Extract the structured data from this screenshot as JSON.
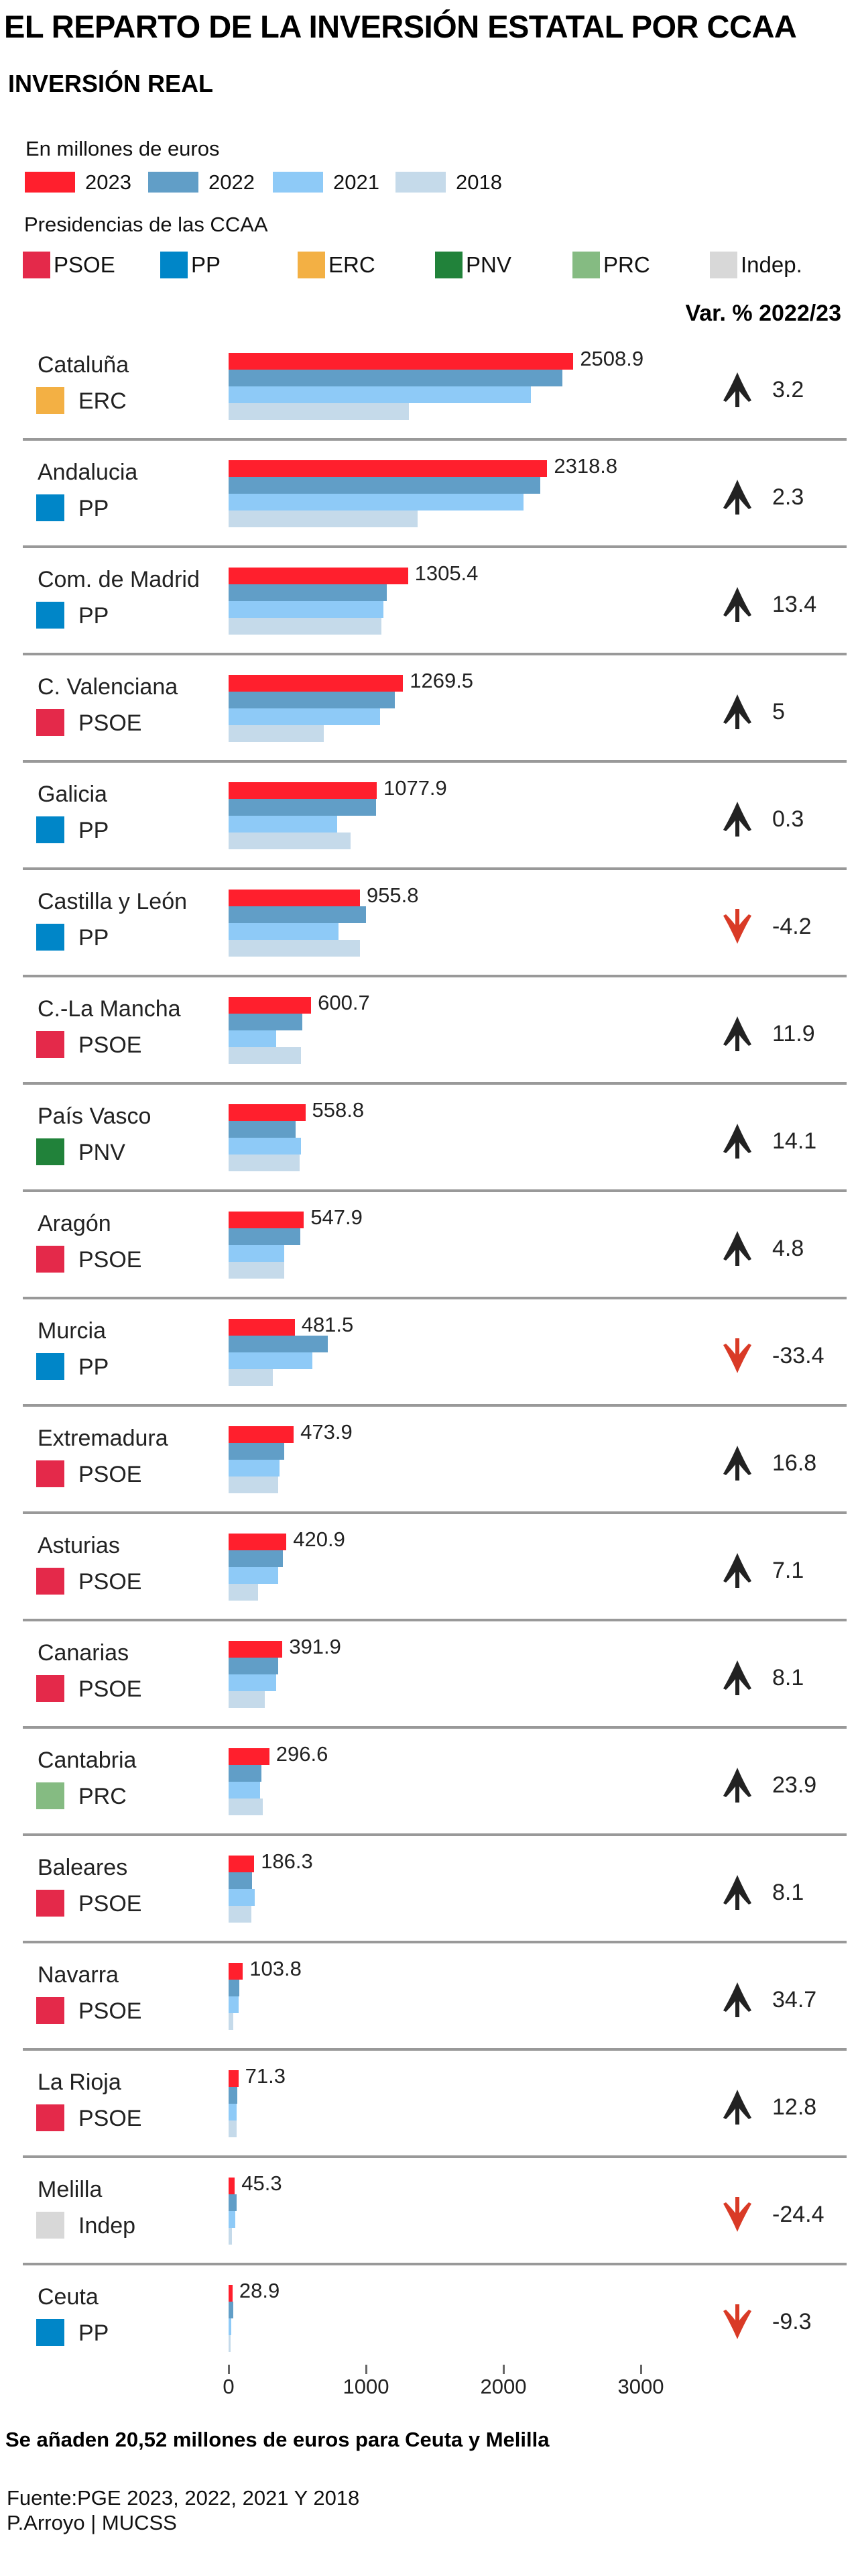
{
  "chart_data": {
    "type": "bar",
    "orientation": "horizontal",
    "title": "EL REPARTO DE LA INVERSIÓN ESTATAL POR CCAA",
    "subtitle": "INVERSIÓN REAL",
    "unit_label": "En millones de euros",
    "party_legend_title": "Presidencias de las CCAA",
    "var_header": "Var. % 2022/23",
    "xlim": [
      0,
      3000
    ],
    "xticks": [
      "0",
      "1000",
      "2000",
      "3000"
    ],
    "grid": false,
    "legend_placement": "top-left",
    "series": [
      {
        "name": "2023",
        "color": "#ff1f2d",
        "values": [
          2508.9,
          2318.8,
          1305.4,
          1269.5,
          1077.9,
          955.8,
          600.7,
          558.8,
          547.9,
          481.5,
          473.9,
          420.9,
          391.9,
          296.6,
          186.3,
          103.8,
          71.3,
          45.3,
          28.9
        ]
      },
      {
        "name": "2022",
        "color": "#619ec7",
        "values": [
          2431,
          2267,
          1151,
          1209,
          1075,
          998,
          537,
          490,
          523,
          723,
          406,
          393,
          363,
          239,
          172,
          77,
          63,
          60,
          32
        ]
      },
      {
        "name": "2021",
        "color": "#8ecaf7",
        "values": [
          2200,
          2144,
          1126,
          1102,
          790,
          802,
          347,
          527,
          407,
          611,
          371,
          359,
          347,
          228,
          192,
          72,
          60,
          50,
          20
        ]
      },
      {
        "name": "2018",
        "color": "#c5daea",
        "values": [
          1312,
          1377,
          1114,
          695,
          886,
          958,
          527,
          515,
          407,
          323,
          359,
          216,
          263,
          251,
          168,
          36,
          60,
          25,
          15
        ]
      }
    ],
    "categories": [
      "Cataluña",
      "Andalucia",
      "Com. de Madrid",
      "C. Valenciana",
      "Galicia",
      "Castilla y León",
      "C.-La Mancha",
      "País Vasco",
      "Aragón",
      "Murcia",
      "Extremadura",
      "Asturias",
      "Canarias",
      "Cantabria",
      "Baleares",
      "Navarra",
      "La Rioja",
      "Melilla",
      "Ceuta"
    ],
    "value_labels": [
      "2508.9",
      "2318.8",
      "1305.4",
      "1269.5",
      "1077.9",
      "955.8",
      "600.7",
      "558.8",
      "547.9",
      "481.5",
      "473.9",
      "420.9",
      "391.9",
      "296.6",
      "186.3",
      "103.8",
      "71.3",
      "45.3",
      "28.9"
    ],
    "parties": [
      "ERC",
      "PP",
      "PP",
      "PSOE",
      "PP",
      "PP",
      "PSOE",
      "PNV",
      "PSOE",
      "PP",
      "PSOE",
      "PSOE",
      "PSOE",
      "PRC",
      "PSOE",
      "PSOE",
      "PSOE",
      "Indep",
      "PP"
    ],
    "var_pct": [
      "3.2",
      "2.3",
      "13.4",
      "5",
      "0.3",
      "-4.2",
      "11.9",
      "14.1",
      "4.8",
      "-33.4",
      "16.8",
      "7.1",
      "8.1",
      "23.9",
      "8.1",
      "34.7",
      "12.8",
      "-24.4",
      "-9.3"
    ],
    "party_legend": [
      {
        "name": "PSOE",
        "color": "#e4294a"
      },
      {
        "name": "PP",
        "color": "#0086c8"
      },
      {
        "name": "ERC",
        "color": "#f3b044"
      },
      {
        "name": "PNV",
        "color": "#21823a"
      },
      {
        "name": "PRC",
        "color": "#85bb82"
      },
      {
        "name": "Indep.",
        "color": "#d8d8d8"
      }
    ],
    "party_colors": {
      "PSOE": "#e4294a",
      "PP": "#0086c8",
      "ERC": "#f3b044",
      "PNV": "#21823a",
      "PRC": "#85bb82",
      "Indep": "#d8d8d8"
    },
    "arrow_colors": {
      "up": "#222222",
      "down": "#d93a26"
    },
    "note": "Se añaden 20,52 millones de euros para Ceuta y Melilla",
    "source": "Fuente:PGE 2023, 2022, 2021 Y 2018",
    "credit": "P.Arroyo | MUCSS"
  }
}
